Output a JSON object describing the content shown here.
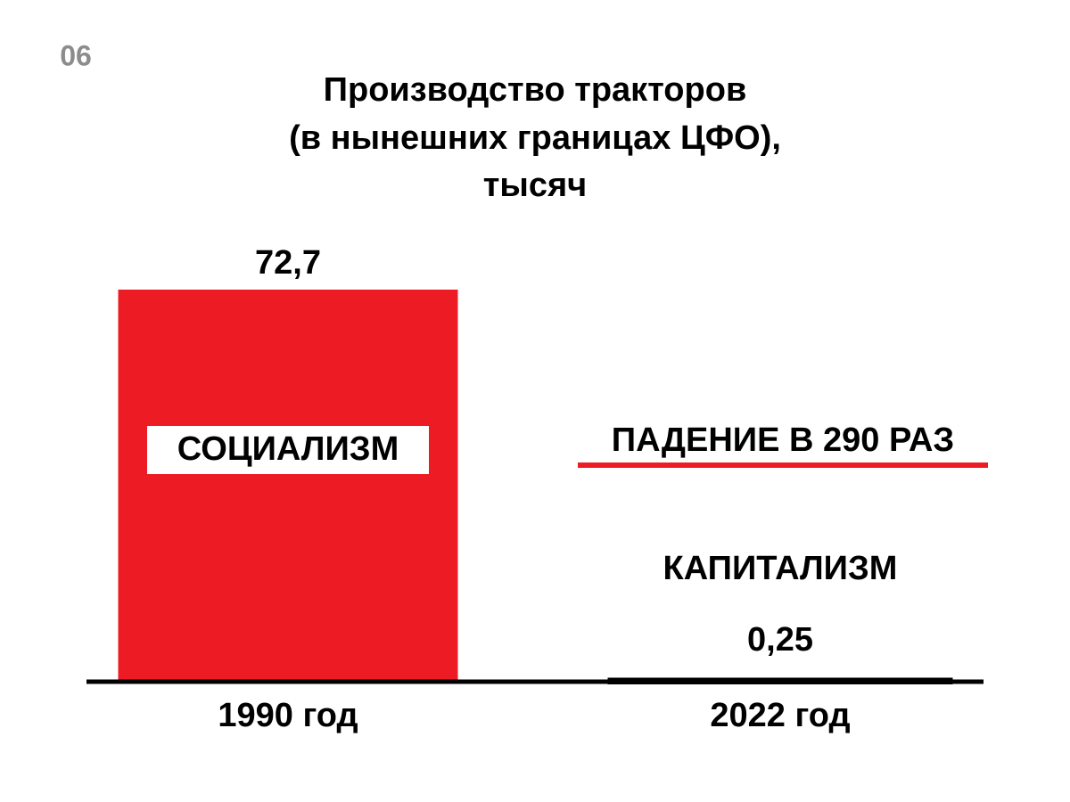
{
  "page_number": "06",
  "chart_data": {
    "type": "bar",
    "title": [
      "Производство тракторов",
      "(в нынешних границах ЦФО),",
      "тысяч"
    ],
    "categories": [
      "1990 год",
      "2022 год"
    ],
    "values": [
      72.7,
      0.25
    ],
    "value_labels": [
      "72,7",
      "0,25"
    ],
    "bar_labels": [
      "СОЦИАЛИЗМ",
      "КАПИТАЛИЗМ"
    ],
    "colors": [
      "#ed1c24",
      "#000000"
    ],
    "annotation": "ПАДЕНИЕ В 290 РАЗ"
  }
}
